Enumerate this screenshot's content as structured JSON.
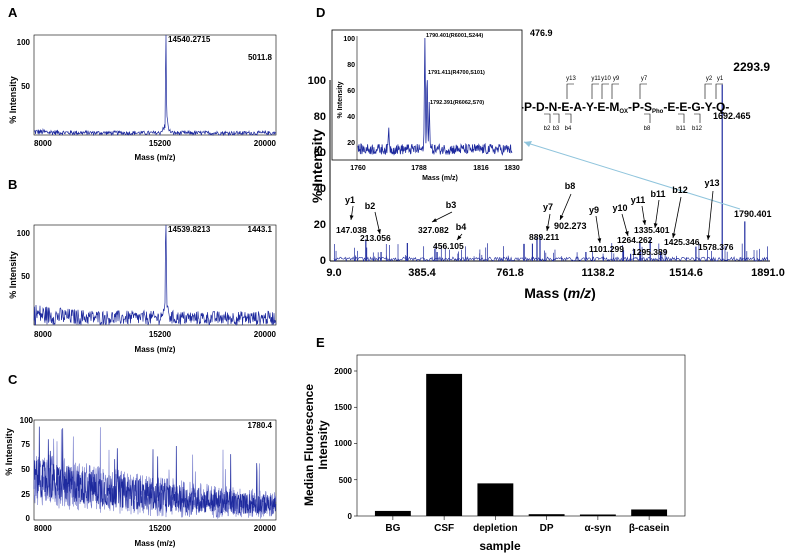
{
  "colors": {
    "spectrum": "#1e2a9e",
    "spectrum_light": "#6b72c8",
    "bar": "#000000",
    "arrow": "#8fc4dc"
  },
  "panels": {
    "A": {
      "letter": "A",
      "ylabel": "% Intensity",
      "xlabel": "Mass (m/z)",
      "peak_label": "14540.2715",
      "max_label": "5011.8",
      "xticks": [
        "8000",
        "15200",
        "20000"
      ],
      "yticks": [
        "100",
        "50"
      ]
    },
    "B": {
      "letter": "B",
      "ylabel": "% Intensity",
      "xlabel": "Mass (m/z)",
      "peak_label": "14539.8213",
      "max_label": "1443.1",
      "xticks": [
        "8000",
        "15200",
        "20000"
      ],
      "yticks": [
        "100",
        "50"
      ]
    },
    "C": {
      "letter": "C",
      "ylabel": "% Intensity",
      "xlabel": "Mass (m/z)",
      "max_label": "1780.4",
      "xticks": [
        "8000",
        "15200",
        "20000"
      ],
      "yticks": [
        "100",
        "75",
        "50",
        "25",
        "0"
      ]
    },
    "D": {
      "letter": "D",
      "ylabel": "% Intensity",
      "xlabel_main": "Mass (",
      "xlabel_ital": "m/z",
      "xlabel_end": ")",
      "max_label": "2293.9",
      "xticks": [
        "9.0",
        "385.4",
        "761.8",
        "1138.2",
        "1514.6",
        "1891.0"
      ],
      "yticks": [
        "100",
        "80",
        "60",
        "40",
        "20",
        "0"
      ],
      "inset": {
        "ylabel": "% Intensity",
        "xlabel": "Mass (m/z)",
        "max_label": "476.9",
        "xticks": [
          "1760",
          "1788",
          "1816",
          "1830"
        ],
        "yticks": [
          "100",
          "80",
          "60",
          "40",
          "20"
        ],
        "peaks": [
          "1790.401(R6001,S244)",
          "1791.411(R4700,S101)",
          "1792.391(R6062,S70)"
        ]
      },
      "sequence": {
        "text": "-P-D-N-E-A-Y-E-M",
        "ox": "OX",
        "mid": "-P-S",
        "pho": "Pho",
        "end": "-E-E-G-Y-Q-",
        "ytop": [
          "y13",
          "y11",
          "y10",
          "y9",
          "y7",
          "y2",
          "y1"
        ],
        "bbot": [
          "b2",
          "b3",
          "b4",
          "b8",
          "b11",
          "b12"
        ]
      }
    },
    "E": {
      "letter": "E",
      "ylabel_line1": "Median Fluorescence",
      "ylabel_line2": "Intensity",
      "xlabel": "sample",
      "yticks": [
        "2000",
        "1500",
        "1000",
        "500",
        "0"
      ]
    }
  },
  "chart_data": [
    {
      "panel": "A",
      "type": "line",
      "xlabel": "Mass (m/z)",
      "ylabel": "% Intensity",
      "xlim": [
        8000,
        20000
      ],
      "ylim": [
        0,
        100
      ],
      "peaks": [
        {
          "x": 14540.2715,
          "y": 100
        }
      ],
      "max_intensity": "5011.8"
    },
    {
      "panel": "B",
      "type": "line",
      "xlabel": "Mass (m/z)",
      "ylabel": "% Intensity",
      "xlim": [
        8000,
        20000
      ],
      "ylim": [
        0,
        100
      ],
      "peaks": [
        {
          "x": 14539.8213,
          "y": 100
        }
      ],
      "max_intensity": "1443.1"
    },
    {
      "panel": "C",
      "type": "line",
      "xlabel": "Mass (m/z)",
      "ylabel": "% Intensity",
      "xlim": [
        8000,
        20000
      ],
      "ylim": [
        0,
        100
      ],
      "max_intensity": "1780.4"
    },
    {
      "panel": "D",
      "type": "line",
      "xlabel": "Mass (m/z)",
      "ylabel": "% Intensity",
      "xlim": [
        9.0,
        1891.0
      ],
      "ylim": [
        0,
        100
      ],
      "max_intensity": "2293.9",
      "labeled_peaks": [
        {
          "ion": "y1",
          "mz": "147.038",
          "x": 147.038,
          "y": 12
        },
        {
          "ion": "b2",
          "mz": "213.056",
          "x": 213.056,
          "y": 5
        },
        {
          "ion": "b3",
          "mz": "327.082",
          "x": 327.082,
          "y": 10
        },
        {
          "ion": "b4",
          "mz": "456.105",
          "x": 456.105,
          "y": 5
        },
        {
          "ion": "y7",
          "mz": "889.211",
          "x": 889.211,
          "y": 13
        },
        {
          "ion": "b8",
          "mz": "902.273",
          "x": 902.273,
          "y": 14
        },
        {
          "ion": "y9",
          "mz": "1101.299",
          "x": 1101.299,
          "y": 5
        },
        {
          "ion": "y10",
          "mz": "1264.262",
          "x": 1264.262,
          "y": 6
        },
        {
          "ion": "",
          "mz": "1295.389",
          "x": 1295.389,
          "y": 4
        },
        {
          "ion": "y11",
          "mz": "1335.401",
          "x": 1335.401,
          "y": 10
        },
        {
          "ion": "b11",
          "mz": "",
          "x": 1380.0,
          "y": 12
        },
        {
          "ion": "b12",
          "mz": "1425.346",
          "x": 1425.346,
          "y": 5
        },
        {
          "ion": "y13",
          "mz": "1578.376",
          "x": 1578.376,
          "y": 8
        },
        {
          "ion": "",
          "mz": "1692.465",
          "x": 1692.465,
          "y": 98
        },
        {
          "ion": "",
          "mz": "1790.401",
          "x": 1790.401,
          "y": 22
        }
      ],
      "inset": {
        "xlim": [
          1760,
          1830
        ],
        "ylim": [
          0,
          100
        ],
        "peaks": [
          {
            "x": 1790.401,
            "y": 100
          },
          {
            "x": 1791.411,
            "y": 62
          },
          {
            "x": 1792.391,
            "y": 42
          },
          {
            "x": 1774,
            "y": 18
          }
        ]
      }
    },
    {
      "panel": "E",
      "type": "bar",
      "xlabel": "sample",
      "ylabel": "Median Fluorescence Intensity",
      "categories": [
        "BG",
        "CSF",
        "depletion",
        "DP",
        "α-syn",
        "β-casein"
      ],
      "values": [
        70,
        1960,
        450,
        25,
        10,
        90
      ],
      "ylim": [
        0,
        2000
      ]
    }
  ]
}
